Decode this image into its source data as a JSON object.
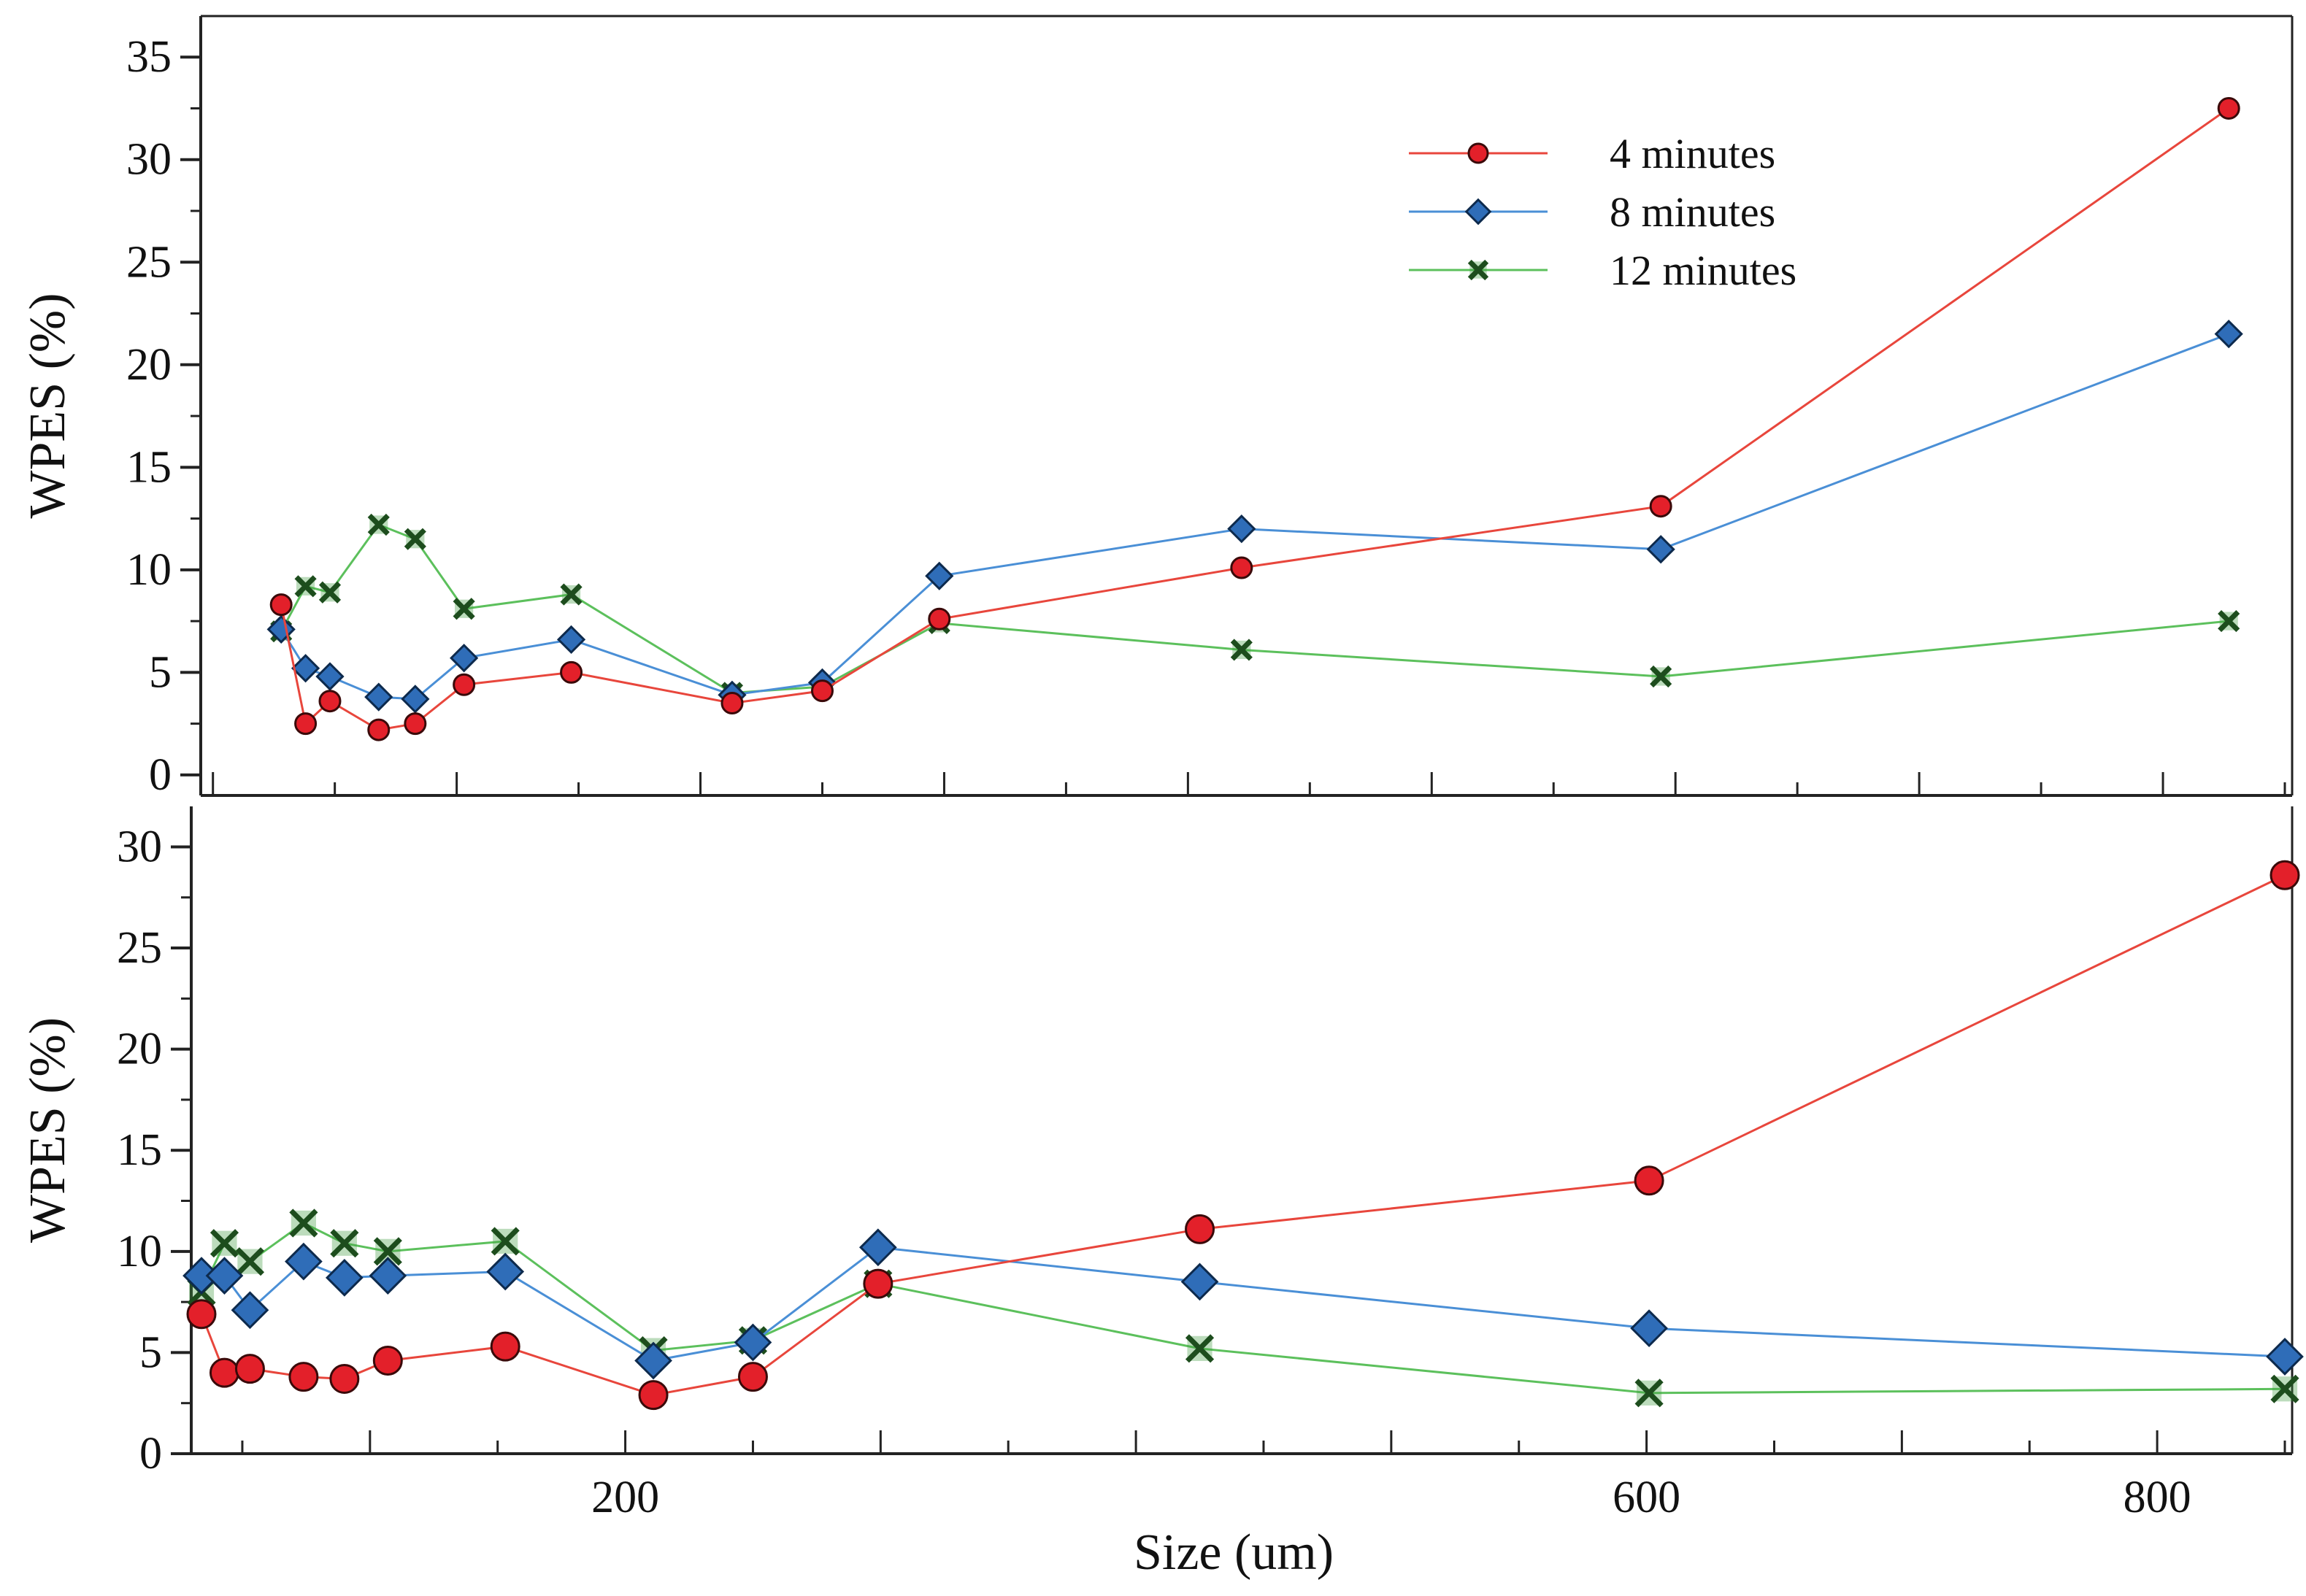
{
  "colors": {
    "red_line": "#e8463c",
    "red_marker": "#e3202a",
    "blue_line": "#4a8fd6",
    "blue_marker": "#2f6db8",
    "green_line": "#5cc05c",
    "green_marker": "#3f9a3f",
    "axis": "#222222"
  },
  "legend": {
    "items": [
      {
        "label": "4 minutes",
        "marker": "circle",
        "color_key": "red"
      },
      {
        "label": "8 minutes",
        "marker": "diamond",
        "color_key": "blue"
      },
      {
        "label": "12 minutes",
        "marker": "cross",
        "color_key": "green"
      }
    ]
  },
  "chart_data": [
    {
      "type": "line",
      "panel": "top",
      "title": "",
      "xlabel": "",
      "ylabel": "WPES (%)",
      "xlim": [
        -5,
        850
      ],
      "ylim": [
        -1,
        37
      ],
      "yticks": [
        0,
        5,
        10,
        15,
        20,
        25,
        30,
        35
      ],
      "legend_position": "top-right",
      "series": [
        {
          "name": "4 minutes",
          "color_key": "red",
          "marker": "circle",
          "x": [
            28,
            38,
            48,
            68,
            83,
            103,
            147,
            213,
            250,
            298,
            422,
            594,
            827
          ],
          "y": [
            8.3,
            2.5,
            3.6,
            2.2,
            2.5,
            4.4,
            5.0,
            3.5,
            4.1,
            7.6,
            10.1,
            13.1,
            32.5
          ]
        },
        {
          "name": "8 minutes",
          "color_key": "blue",
          "marker": "diamond",
          "x": [
            28,
            38,
            48,
            68,
            83,
            103,
            147,
            213,
            250,
            298,
            422,
            594,
            827
          ],
          "y": [
            7.1,
            5.2,
            4.8,
            3.8,
            3.7,
            5.7,
            6.6,
            3.9,
            4.5,
            9.7,
            12.0,
            11.0,
            21.5
          ]
        },
        {
          "name": "12 minutes",
          "color_key": "green",
          "marker": "cross",
          "x": [
            28,
            38,
            48,
            68,
            83,
            103,
            147,
            213,
            250,
            298,
            422,
            594,
            827
          ],
          "y": [
            7.0,
            9.2,
            8.9,
            12.2,
            11.5,
            8.1,
            8.8,
            4.0,
            4.3,
            7.4,
            6.1,
            4.8,
            7.5
          ]
        }
      ]
    },
    {
      "type": "line",
      "panel": "bottom",
      "title": "",
      "xlabel": "Size (um)",
      "ylabel": "WPES (%)",
      "xlim": [
        30,
        850
      ],
      "ylim": [
        0,
        32
      ],
      "yticks": [
        0,
        5,
        10,
        15,
        20,
        25,
        30
      ],
      "xticks": [
        200,
        600,
        800
      ],
      "series": [
        {
          "name": "4 minutes",
          "color_key": "red",
          "marker": "circle",
          "x": [
            34,
            43,
            53,
            74,
            90,
            107,
            153,
            211,
            250,
            299,
            425,
            601,
            850
          ],
          "y": [
            6.9,
            4.0,
            4.2,
            3.8,
            3.7,
            4.6,
            5.3,
            2.9,
            3.8,
            8.4,
            11.1,
            13.5,
            28.6
          ]
        },
        {
          "name": "8 minutes",
          "color_key": "blue",
          "marker": "diamond",
          "x": [
            34,
            43,
            53,
            74,
            90,
            107,
            153,
            211,
            250,
            299,
            425,
            601,
            850
          ],
          "y": [
            8.8,
            8.8,
            7.1,
            9.5,
            8.7,
            8.8,
            9.0,
            4.6,
            5.5,
            10.2,
            8.5,
            6.2,
            4.8
          ]
        },
        {
          "name": "12 minutes",
          "color_key": "green",
          "marker": "cross",
          "x": [
            34,
            43,
            53,
            74,
            90,
            107,
            153,
            211,
            250,
            299,
            425,
            601,
            850
          ],
          "y": [
            8.0,
            10.4,
            9.5,
            11.4,
            10.4,
            10.0,
            10.5,
            5.1,
            5.6,
            8.4,
            5.2,
            3.0,
            3.2
          ]
        }
      ]
    }
  ]
}
